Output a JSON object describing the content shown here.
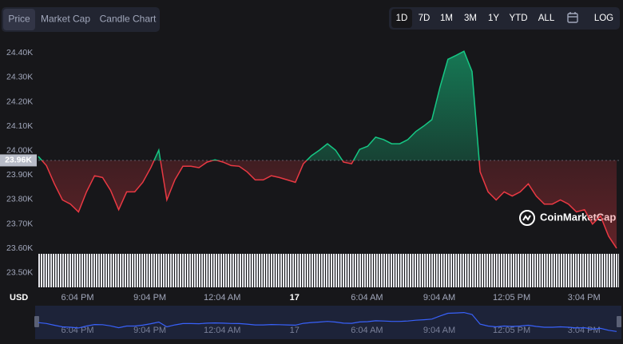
{
  "chart_data": {
    "type": "line",
    "tabs": [
      "Price",
      "Market Cap",
      "Candle Chart"
    ],
    "active_tab": 0,
    "ranges": [
      "1D",
      "7D",
      "1M",
      "3M",
      "1Y",
      "YTD",
      "ALL"
    ],
    "active_range": 0,
    "log_label": "LOG",
    "currency": "USD",
    "watermark": "CoinMarketCap",
    "up_color": "#16c784",
    "down_color": "#ea3943",
    "navigator_color": "#3861fb",
    "series": [
      {
        "name": "Price",
        "values": [
          23976,
          23939,
          23864,
          23798,
          23781,
          23749,
          23831,
          23897,
          23890,
          23837,
          23758,
          23831,
          23831,
          23870,
          23930,
          24002,
          23798,
          23880,
          23936,
          23936,
          23930,
          23953,
          23962,
          23953,
          23939,
          23936,
          23913,
          23880,
          23880,
          23897,
          23890,
          23880,
          23870,
          23946,
          23979,
          24002,
          24028,
          24002,
          23953,
          23946,
          24005,
          24018,
          24055,
          24045,
          24028,
          24028,
          24045,
          24078,
          24101,
          24127,
          24259,
          24374,
          24390,
          24407,
          24324,
          23913,
          23831,
          23798,
          23831,
          23814,
          23831,
          23864,
          23814,
          23781,
          23781,
          23798,
          23781,
          23749,
          23758,
          23699,
          23732,
          23650,
          23600
        ]
      }
    ],
    "baseline": {
      "value": 23960,
      "label": "23.96K"
    },
    "ylim": [
      23440,
      24460
    ],
    "yticks": [
      {
        "value": 24400,
        "label": "24.40K"
      },
      {
        "value": 24300,
        "label": "24.30K"
      },
      {
        "value": 24200,
        "label": "24.20K"
      },
      {
        "value": 24100,
        "label": "24.10K"
      },
      {
        "value": 24000,
        "label": "24.00K"
      },
      {
        "value": 23900,
        "label": "23.90K"
      },
      {
        "value": 23800,
        "label": "23.80K"
      },
      {
        "value": 23700,
        "label": "23.70K"
      },
      {
        "value": 23600,
        "label": "23.60K"
      },
      {
        "value": 23500,
        "label": "23.50K"
      }
    ],
    "xtick_labels": [
      "6:04 PM",
      "9:04 PM",
      "12:04 AM",
      "17",
      "6:04 AM",
      "9:04 AM",
      "12:05 PM",
      "3:04 PM"
    ]
  }
}
